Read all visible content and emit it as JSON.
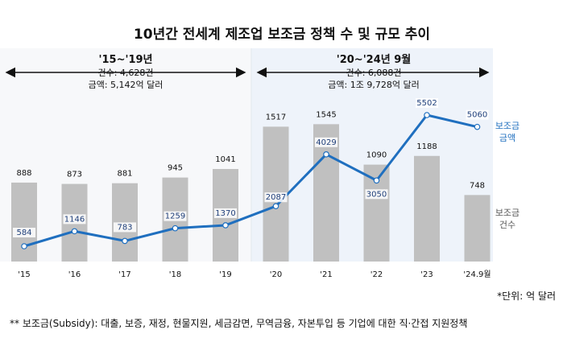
{
  "chart_data": {
    "type": "bar+line",
    "title": "10년간 전세계 제조업 보조금 정책 수 및 규모 추이",
    "categories": [
      "'15",
      "'16",
      "'17",
      "'18",
      "'19",
      "'20",
      "'21",
      "'22",
      "'23",
      "'24.9월"
    ],
    "series": [
      {
        "name": "보조금 건수",
        "kind": "bar",
        "values": [
          888,
          873,
          881,
          945,
          1041,
          1517,
          1545,
          1090,
          1188,
          748
        ]
      },
      {
        "name": "보조금 금액",
        "kind": "line",
        "values": [
          584,
          1146,
          783,
          1259,
          1370,
          2087,
          4029,
          3050,
          5502,
          5060
        ]
      }
    ],
    "periods": [
      {
        "label": "'15~'19년",
        "count": "건수: 4,628건",
        "amount": "금액: 5,142억 달러"
      },
      {
        "label": "'20~'24년 9월",
        "count": "건수: 6,088건",
        "amount": "금액: 1조 9,728억 달러"
      }
    ],
    "legend": {
      "line": [
        "보조금",
        "금액"
      ],
      "bar": [
        "보조금",
        "건수"
      ]
    },
    "unit": "*단위: 억 달러",
    "footnote": "** 보조금(Subsidy): 대출, 보증, 재정, 현물지원, 세금감면, 무역금융, 자본투입 등 기업에 대한 직·간접 지원정책",
    "colors": {
      "bar": "#c0c0c0",
      "line": "#1f6fbf",
      "band_left": "#f7f8fa",
      "band_right": "#eef3fa"
    }
  }
}
